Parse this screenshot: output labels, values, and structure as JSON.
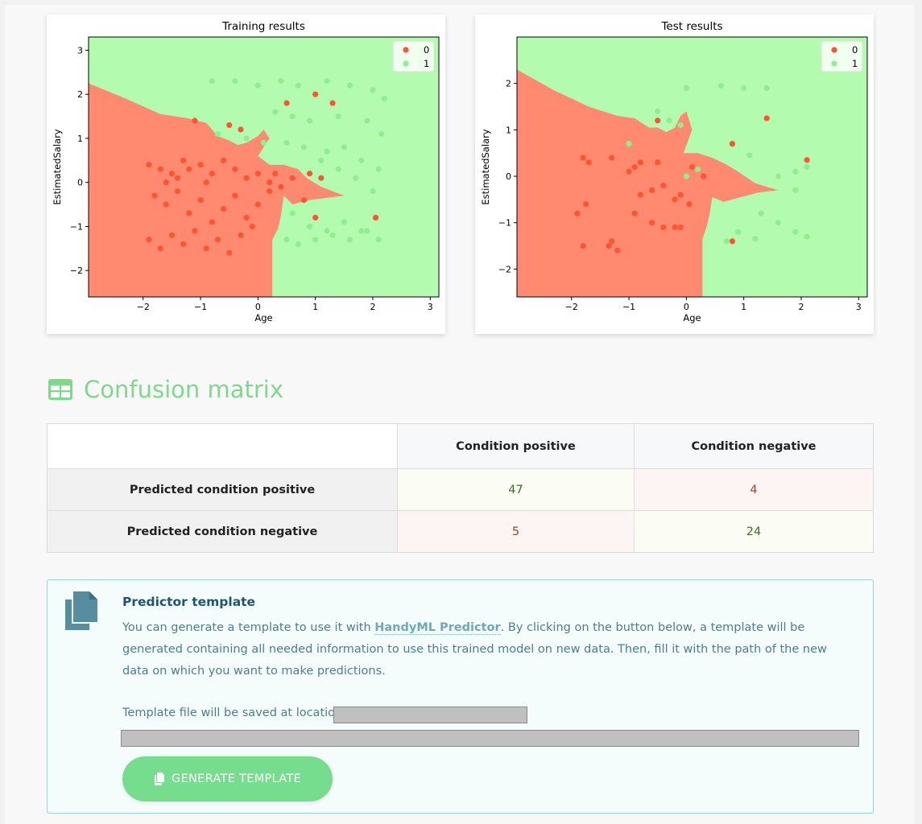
{
  "charts": [
    {
      "title": "Training results",
      "xlabel": "Age",
      "ylabel": "EstimatedSalary",
      "xticks": [
        "−2",
        "−1",
        "0",
        "1",
        "2",
        "3"
      ],
      "yticks": [
        "3",
        "2",
        "1",
        "0",
        "−1",
        "−2"
      ],
      "legend": [
        "0",
        "1"
      ]
    },
    {
      "title": "Test results",
      "xlabel": "Age",
      "ylabel": "EstimatedSalary",
      "xticks": [
        "−2",
        "−1",
        "0",
        "1",
        "2",
        "3"
      ],
      "yticks": [
        "2",
        "1",
        "0",
        "−1",
        "−2"
      ],
      "legend": [
        "0",
        "1"
      ]
    }
  ],
  "chart_data": [
    {
      "type": "scatter",
      "title": "Training results",
      "xlabel": "Age",
      "ylabel": "EstimatedSalary",
      "xlim": [
        -2.95,
        3.15
      ],
      "ylim": [
        -2.6,
        3.3
      ],
      "legend_position": "top-right",
      "colors": {
        "region0": "#ff8a70",
        "region1": "#b3fcaf",
        "point0": "#ff5533",
        "point1": "#90ee90"
      },
      "series": [
        {
          "name": "0",
          "points": [
            [
              -1.9,
              0.4
            ],
            [
              -1.7,
              0.3
            ],
            [
              -1.5,
              0.2
            ],
            [
              -1.3,
              0.5
            ],
            [
              -1.2,
              0.3
            ],
            [
              -1.0,
              0.4
            ],
            [
              -0.8,
              0.2
            ],
            [
              -0.6,
              0.5
            ],
            [
              -0.4,
              0.3
            ],
            [
              -0.2,
              0.1
            ],
            [
              0.0,
              0.2
            ],
            [
              0.2,
              0.0
            ],
            [
              0.4,
              -0.1
            ],
            [
              0.6,
              0.1
            ],
            [
              -1.8,
              -0.3
            ],
            [
              -1.6,
              -0.5
            ],
            [
              -1.4,
              -0.2
            ],
            [
              -1.2,
              -0.7
            ],
            [
              -1.0,
              -0.4
            ],
            [
              -0.8,
              -0.9
            ],
            [
              -0.6,
              -0.6
            ],
            [
              -0.4,
              -0.3
            ],
            [
              -0.2,
              -0.8
            ],
            [
              0.0,
              -0.5
            ],
            [
              0.2,
              -0.2
            ],
            [
              -1.9,
              -1.3
            ],
            [
              -1.7,
              -1.5
            ],
            [
              -1.5,
              -1.2
            ],
            [
              -1.3,
              -1.4
            ],
            [
              -1.1,
              -1.1
            ],
            [
              -0.9,
              -1.5
            ],
            [
              -0.7,
              -1.3
            ],
            [
              -0.5,
              -1.6
            ],
            [
              -0.3,
              -1.2
            ],
            [
              -0.1,
              -1.0
            ],
            [
              -1.1,
              1.4
            ],
            [
              -0.5,
              1.3
            ],
            [
              -0.3,
              1.2
            ],
            [
              0.5,
              1.8
            ],
            [
              1.0,
              2.0
            ],
            [
              1.3,
              1.8
            ],
            [
              1.1,
              0.1
            ],
            [
              0.8,
              -0.4
            ],
            [
              1.0,
              -0.8
            ],
            [
              2.05,
              -0.8
            ],
            [
              0.9,
              0.2
            ],
            [
              0.3,
              0.2
            ],
            [
              -1.6,
              0.0
            ],
            [
              -1.4,
              0.1
            ],
            [
              -0.9,
              0.0
            ]
          ]
        },
        {
          "name": "1",
          "points": [
            [
              -0.8,
              2.3
            ],
            [
              -0.4,
              2.3
            ],
            [
              0.0,
              2.2
            ],
            [
              0.4,
              2.3
            ],
            [
              0.7,
              2.2
            ],
            [
              1.2,
              2.3
            ],
            [
              1.6,
              2.2
            ],
            [
              2.0,
              2.1
            ],
            [
              2.2,
              1.9
            ],
            [
              -0.7,
              1.1
            ],
            [
              -0.2,
              1.0
            ],
            [
              0.1,
              0.9
            ],
            [
              0.5,
              0.9
            ],
            [
              0.8,
              0.8
            ],
            [
              1.2,
              0.7
            ],
            [
              1.5,
              0.8
            ],
            [
              1.8,
              0.5
            ],
            [
              2.1,
              0.3
            ],
            [
              1.1,
              0.5
            ],
            [
              1.4,
              0.3
            ],
            [
              1.7,
              0.1
            ],
            [
              2.0,
              -0.2
            ],
            [
              0.6,
              -0.7
            ],
            [
              0.9,
              -1.0
            ],
            [
              1.2,
              -1.1
            ],
            [
              1.5,
              -0.9
            ],
            [
              1.8,
              -1.1
            ],
            [
              2.1,
              -1.3
            ],
            [
              0.5,
              -1.3
            ],
            [
              0.7,
              -1.4
            ],
            [
              1.0,
              -1.3
            ],
            [
              1.3,
              -1.2
            ],
            [
              1.6,
              -1.3
            ],
            [
              1.9,
              -1.1
            ],
            [
              0.3,
              1.6
            ],
            [
              0.6,
              1.5
            ],
            [
              0.9,
              1.4
            ],
            [
              1.4,
              1.5
            ],
            [
              1.9,
              1.4
            ],
            [
              2.15,
              1.1
            ]
          ]
        }
      ]
    },
    {
      "type": "scatter",
      "title": "Test results",
      "xlabel": "Age",
      "ylabel": "EstimatedSalary",
      "xlim": [
        -2.95,
        3.15
      ],
      "ylim": [
        -2.6,
        3.0
      ],
      "legend_position": "top-right",
      "colors": {
        "region0": "#ff8a70",
        "region1": "#b3fcaf",
        "point0": "#ff5533",
        "point1": "#90ee90"
      },
      "series": [
        {
          "name": "0",
          "points": [
            [
              -1.8,
              0.4
            ],
            [
              -1.7,
              0.3
            ],
            [
              -1.9,
              -0.8
            ],
            [
              -1.75,
              -0.6
            ],
            [
              -1.8,
              -1.5
            ],
            [
              -1.3,
              -1.4
            ],
            [
              -1.35,
              -1.5
            ],
            [
              -1.2,
              -1.6
            ],
            [
              -1.0,
              0.1
            ],
            [
              -0.9,
              0.2
            ],
            [
              -0.8,
              -0.4
            ],
            [
              -0.6,
              -0.3
            ],
            [
              -0.4,
              -0.2
            ],
            [
              -0.2,
              -0.5
            ],
            [
              -0.1,
              -0.4
            ],
            [
              0.05,
              -0.6
            ],
            [
              -0.9,
              -0.8
            ],
            [
              -0.6,
              -1.0
            ],
            [
              -0.4,
              -1.1
            ],
            [
              -0.2,
              -1.1
            ],
            [
              -0.1,
              -1.1
            ],
            [
              -0.5,
              1.2
            ],
            [
              -1.3,
              0.4
            ],
            [
              -0.8,
              0.3
            ],
            [
              -0.5,
              0.3
            ],
            [
              0.1,
              0.2
            ],
            [
              0.3,
              0.0
            ],
            [
              0.8,
              0.7
            ],
            [
              1.4,
              1.25
            ],
            [
              2.1,
              0.35
            ],
            [
              0.8,
              -1.4
            ]
          ]
        },
        {
          "name": "1",
          "points": [
            [
              -1.0,
              0.7
            ],
            [
              -0.5,
              1.4
            ],
            [
              -0.3,
              1.2
            ],
            [
              -0.1,
              1.1
            ],
            [
              0.0,
              1.9
            ],
            [
              0.6,
              1.95
            ],
            [
              1.0,
              1.9
            ],
            [
              1.4,
              1.9
            ],
            [
              0.0,
              0.0
            ],
            [
              0.2,
              0.15
            ],
            [
              1.1,
              0.45
            ],
            [
              1.6,
              0.0
            ],
            [
              1.9,
              0.1
            ],
            [
              2.1,
              0.2
            ],
            [
              1.3,
              -0.8
            ],
            [
              1.6,
              -1.0
            ],
            [
              1.9,
              -1.2
            ],
            [
              2.1,
              -1.3
            ],
            [
              0.9,
              -1.2
            ],
            [
              1.2,
              -1.35
            ],
            [
              0.7,
              -1.4
            ],
            [
              1.9,
              -0.3
            ]
          ]
        }
      ]
    }
  ],
  "confusion": {
    "section_title": "Confusion matrix",
    "col_headers": [
      "Condition positive",
      "Condition negative"
    ],
    "rows": [
      {
        "label": "Predicted condition positive",
        "values": [
          "47",
          "4"
        ]
      },
      {
        "label": "Predicted condition negative",
        "values": [
          "5",
          "24"
        ]
      }
    ]
  },
  "predictor": {
    "title": "Predictor template",
    "text_before": "You can generate a template to use it with ",
    "link": "HandyML Predictor",
    "text_after": ". By clicking on the button below, a template will be generated containing all needed information to use this trained model on new data. Then, fill it with the path of the new data on which you want to make predictions.",
    "location_label": "Template file will be saved at location",
    "button_label": "GENERATE TEMPLATE"
  }
}
